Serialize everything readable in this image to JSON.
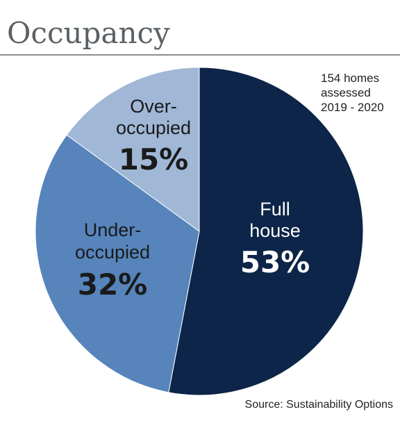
{
  "title": "Occupancy",
  "note": [
    "154 homes",
    "assessed",
    "2019 - 2020"
  ],
  "source": "Source: Sustainability Options",
  "chart_data": {
    "type": "pie",
    "slices": [
      {
        "label": [
          "Full",
          "house"
        ],
        "value": 53,
        "display": "53%",
        "color": "#0c2548",
        "text_color": "#ffffff"
      },
      {
        "label": [
          "Under-",
          "occupied"
        ],
        "value": 32,
        "display": "32%",
        "color": "#5684bb",
        "text_color": "#1a1a1a"
      },
      {
        "label": [
          "Over-",
          "occupied"
        ],
        "value": 15,
        "display": "15%",
        "color": "#a0b7d6",
        "text_color": "#1a1a1a"
      }
    ]
  }
}
